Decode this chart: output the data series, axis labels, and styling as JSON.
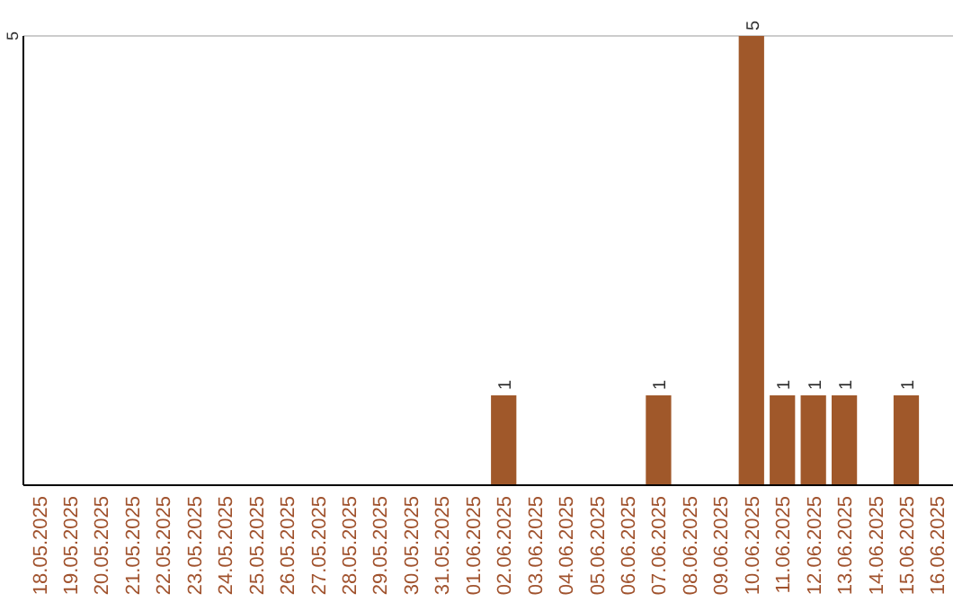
{
  "chart_data": {
    "type": "bar",
    "categories": [
      "18.05.2025",
      "19.05.2025",
      "20.05.2025",
      "21.05.2025",
      "22.05.2025",
      "23.05.2025",
      "24.05.2025",
      "25.05.2025",
      "26.05.2025",
      "27.05.2025",
      "28.05.2025",
      "29.05.2025",
      "30.05.2025",
      "31.05.2025",
      "01.06.2025",
      "02.06.2025",
      "03.06.2025",
      "04.06.2025",
      "05.06.2025",
      "06.06.2025",
      "07.06.2025",
      "08.06.2025",
      "09.06.2025",
      "10.06.2025",
      "11.06.2025",
      "12.06.2025",
      "13.06.2025",
      "14.06.2025",
      "15.06.2025",
      "16.06.2025"
    ],
    "values": [
      null,
      null,
      null,
      null,
      null,
      null,
      null,
      null,
      null,
      null,
      null,
      null,
      null,
      null,
      null,
      1,
      null,
      null,
      null,
      null,
      1,
      null,
      null,
      5,
      1,
      1,
      1,
      null,
      1,
      null
    ],
    "data_labels": true,
    "color": "#a0582a",
    "ylim": [
      0,
      5
    ],
    "yticks": [
      5
    ],
    "ref_lines": [
      {
        "axis": "y",
        "value": 5,
        "color": "#cccccc"
      }
    ]
  }
}
